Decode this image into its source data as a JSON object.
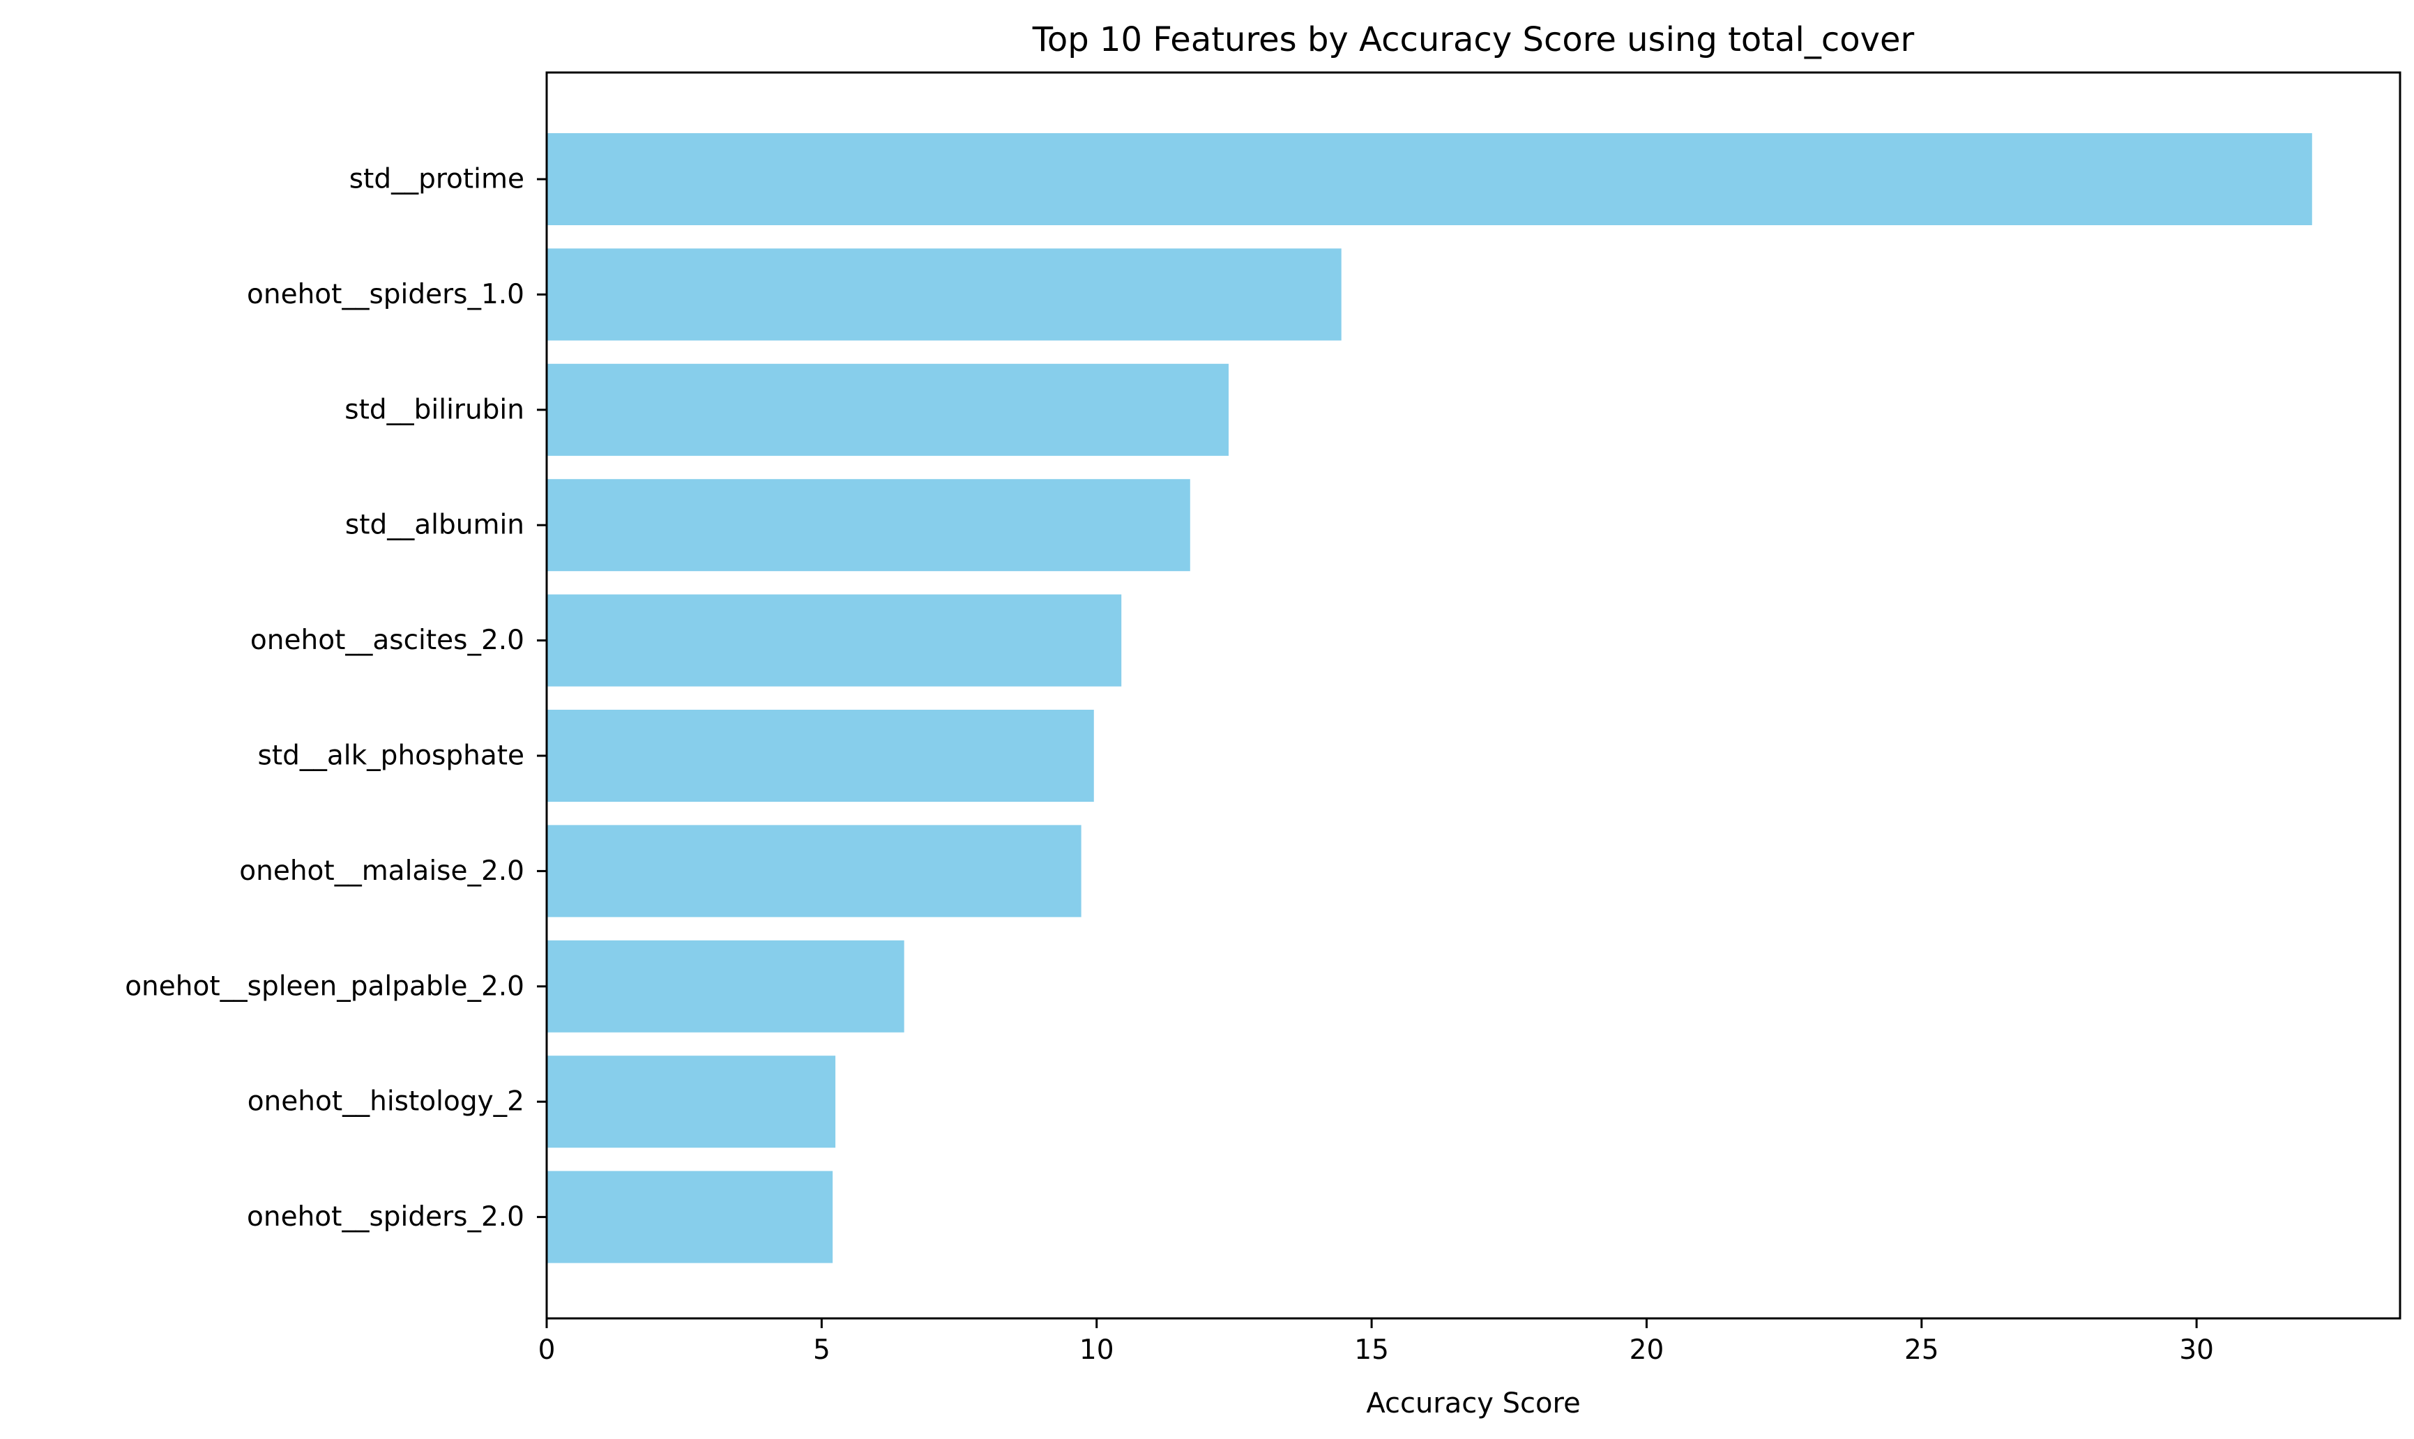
{
  "chart_data": {
    "type": "bar",
    "orientation": "horizontal",
    "title": "Top 10 Features by Accuracy Score using total_cover",
    "xlabel": "Accuracy Score",
    "ylabel": "",
    "categories": [
      "std__protime",
      "onehot__spiders_1.0",
      "std__bilirubin",
      "std__albumin",
      "onehot__ascites_2.0",
      "std__alk_phosphate",
      "onehot__malaise_2.0",
      "onehot__spleen_palpable_2.0",
      "onehot__histology_2",
      "onehot__spiders_2.0"
    ],
    "values": [
      32.1,
      14.45,
      12.4,
      11.7,
      10.45,
      9.95,
      9.72,
      6.5,
      5.25,
      5.2
    ],
    "xlim": [
      0,
      33.7
    ],
    "xticks": [
      0,
      5,
      10,
      15,
      20,
      25,
      30
    ],
    "xtick_labels": [
      "0",
      "5",
      "10",
      "15",
      "20",
      "25",
      "30"
    ],
    "grid": false,
    "legend": "none",
    "bar_color": "#87CEEB",
    "axis_color": "#000000"
  }
}
